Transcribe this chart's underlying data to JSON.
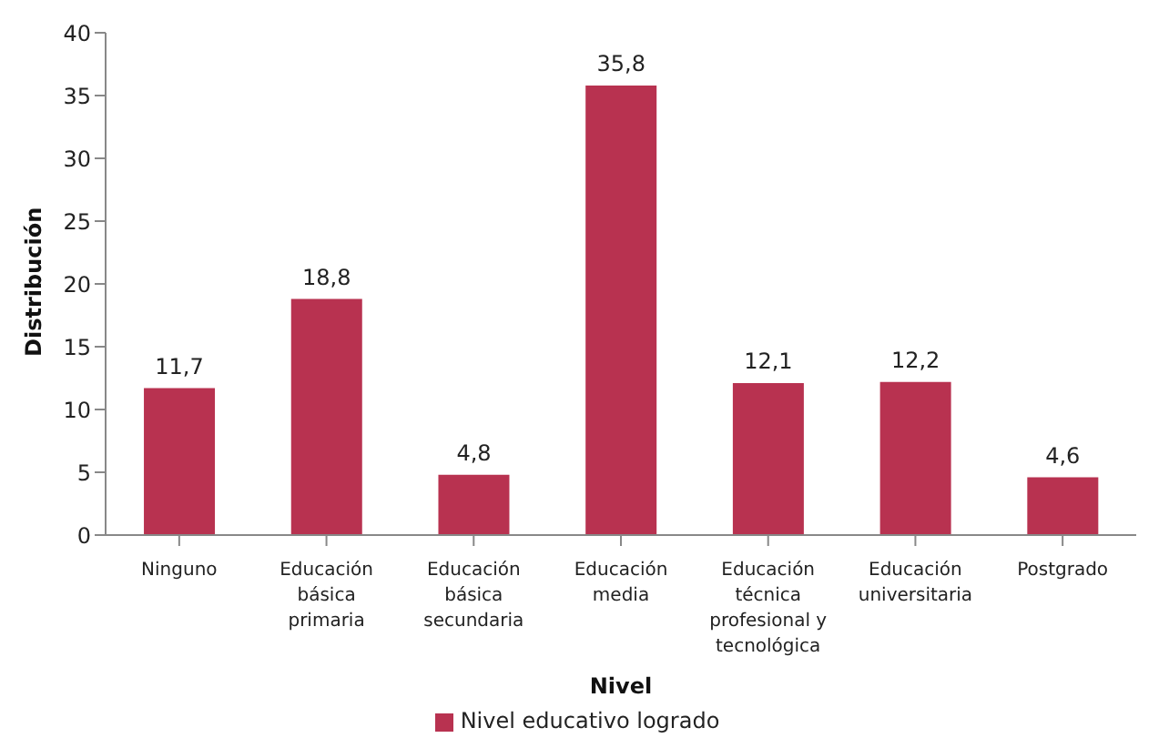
{
  "chart_data": {
    "type": "bar",
    "xlabel": "Nivel",
    "ylabel": "Distribución",
    "categories": [
      "Ninguno",
      "Educación básica primaria",
      "Educación básica secundaria",
      "Educación media",
      "Educación técnica profesional y tecnológica",
      "Educación universitaria",
      "Postgrado"
    ],
    "series": [
      {
        "name": "Nivel educativo logrado",
        "color": "#b83250",
        "values": [
          11.7,
          18.8,
          4.8,
          35.8,
          12.1,
          12.2,
          4.6
        ],
        "value_labels": [
          "11,7",
          "18,8",
          "4,8",
          "35,8",
          "12,1",
          "12,2",
          "4,6"
        ]
      }
    ],
    "ylim": [
      0,
      40
    ],
    "yticks": [
      0,
      5,
      10,
      15,
      20,
      25,
      30,
      35,
      40
    ],
    "grid": false,
    "legend": "bottom"
  }
}
